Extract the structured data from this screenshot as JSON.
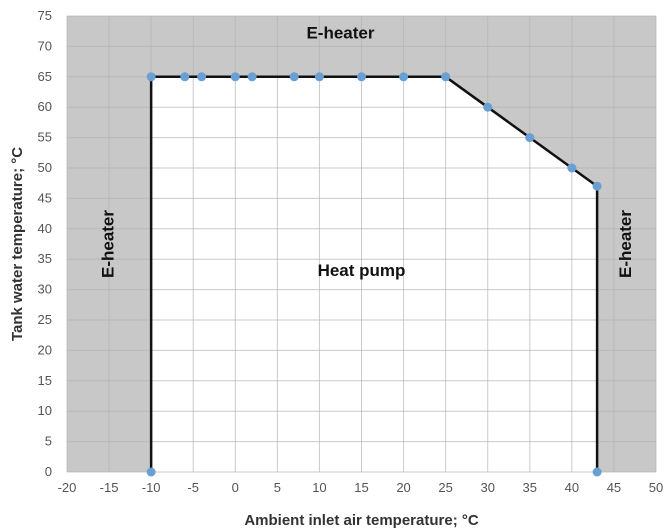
{
  "chart_data": {
    "type": "line",
    "xlabel": "Ambient inlet air temperature; °C",
    "ylabel": "Tank water temperature; °C",
    "xlim": [
      -20,
      50
    ],
    "ylim": [
      0,
      75
    ],
    "xticks": [
      -20,
      -15,
      -10,
      -5,
      0,
      5,
      10,
      15,
      20,
      25,
      30,
      35,
      40,
      45,
      50
    ],
    "yticks": [
      0,
      5,
      10,
      15,
      20,
      25,
      30,
      35,
      40,
      45,
      50,
      55,
      60,
      65,
      70,
      75
    ],
    "grid": true,
    "series": [
      {
        "x": [
          -10,
          -10,
          -6,
          -4,
          0,
          2,
          7,
          10,
          15,
          20,
          25,
          30,
          35,
          40,
          43,
          43
        ],
        "y": [
          0,
          65,
          65,
          65,
          65,
          65,
          65,
          65,
          65,
          65,
          65,
          60,
          55,
          50,
          47,
          0
        ]
      }
    ],
    "annotations": [
      {
        "text": "E-heater",
        "x": 12.5,
        "y": 72
      },
      {
        "text": "E-heater",
        "x": -15,
        "y": 37.5,
        "rotate": -90
      },
      {
        "text": "E-heater",
        "x": 46.5,
        "y": 37.5,
        "rotate": -90
      },
      {
        "text": "Heat pump",
        "x": 15,
        "y": 33
      }
    ],
    "colors": {
      "outside_region": "#c8c8c8",
      "inside_region": "#ffffff",
      "line": "#111111",
      "marker": "#6a9fd4"
    }
  }
}
